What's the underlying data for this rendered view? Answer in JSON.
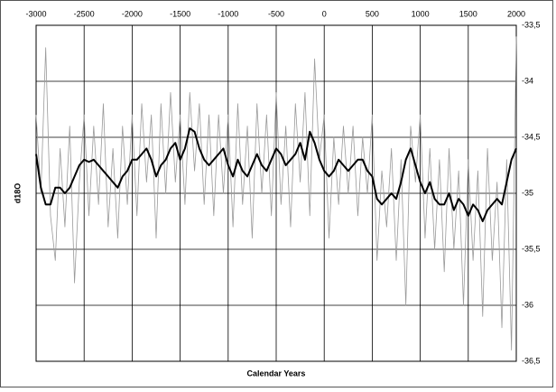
{
  "chart_data": {
    "type": "line",
    "xlabel": "Calendar Years",
    "ylabel": "d18O",
    "x": [
      -3000,
      -2950,
      -2900,
      -2850,
      -2800,
      -2750,
      -2700,
      -2650,
      -2600,
      -2550,
      -2500,
      -2450,
      -2400,
      -2350,
      -2300,
      -2250,
      -2200,
      -2150,
      -2100,
      -2050,
      -2000,
      -1950,
      -1900,
      -1850,
      -1800,
      -1750,
      -1700,
      -1650,
      -1600,
      -1550,
      -1500,
      -1450,
      -1400,
      -1350,
      -1300,
      -1250,
      -1200,
      -1150,
      -1100,
      -1050,
      -1000,
      -950,
      -900,
      -850,
      -800,
      -750,
      -700,
      -650,
      -600,
      -550,
      -500,
      -450,
      -400,
      -350,
      -300,
      -250,
      -200,
      -150,
      -100,
      -50,
      0,
      50,
      100,
      150,
      200,
      250,
      300,
      350,
      400,
      450,
      500,
      550,
      600,
      650,
      700,
      750,
      800,
      850,
      900,
      950,
      1000,
      1050,
      1100,
      1150,
      1200,
      1250,
      1300,
      1350,
      1400,
      1450,
      1500,
      1550,
      1600,
      1650,
      1700,
      1750,
      1800,
      1850,
      1900,
      1950,
      2000
    ],
    "series": [
      {
        "color": "#9a9a9a",
        "width": 0.8,
        "values": [
          -34.3,
          -35.0,
          -33.7,
          -35.2,
          -35.6,
          -34.6,
          -35.3,
          -34.4,
          -35.8,
          -34.9,
          -34.3,
          -35.2,
          -34.4,
          -35.1,
          -34.2,
          -35.3,
          -34.6,
          -35.4,
          -34.4,
          -35.1,
          -34.3,
          -35.2,
          -34.2,
          -34.9,
          -34.3,
          -35.4,
          -34.2,
          -35.0,
          -34.1,
          -34.9,
          -34.3,
          -35.1,
          -34.1,
          -34.8,
          -34.2,
          -35.1,
          -34.3,
          -35.2,
          -34.3,
          -35.0,
          -34.3,
          -35.3,
          -34.2,
          -35.1,
          -34.4,
          -35.4,
          -34.2,
          -35.0,
          -34.3,
          -35.2,
          -34.1,
          -35.1,
          -34.4,
          -35.3,
          -34.2,
          -34.9,
          -34.1,
          -35.2,
          -33.8,
          -34.7,
          -34.3,
          -35.4,
          -34.5,
          -35.1,
          -34.4,
          -35.0,
          -34.4,
          -35.2,
          -34.5,
          -35.0,
          -34.3,
          -35.6,
          -34.8,
          -35.3,
          -34.6,
          -35.6,
          -34.7,
          -36.0,
          -34.4,
          -34.9,
          -34.3,
          -35.4,
          -34.6,
          -35.5,
          -34.7,
          -35.7,
          -34.6,
          -35.5,
          -34.8,
          -36.0,
          -34.7,
          -35.6,
          -34.8,
          -36.1,
          -34.6,
          -35.6,
          -34.9,
          -36.2,
          -34.7,
          -36.4,
          -33.6
        ]
      },
      {
        "color": "#000000",
        "width": 2,
        "values": [
          -34.65,
          -34.95,
          -35.1,
          -35.1,
          -34.95,
          -34.95,
          -35.0,
          -34.95,
          -34.85,
          -34.75,
          -34.7,
          -34.72,
          -34.7,
          -34.75,
          -34.8,
          -34.85,
          -34.9,
          -34.95,
          -34.85,
          -34.8,
          -34.7,
          -34.7,
          -34.65,
          -34.6,
          -34.7,
          -34.85,
          -34.75,
          -34.7,
          -34.6,
          -34.55,
          -34.7,
          -34.6,
          -34.42,
          -34.45,
          -34.6,
          -34.7,
          -34.75,
          -34.7,
          -34.65,
          -34.6,
          -34.75,
          -34.85,
          -34.7,
          -34.8,
          -34.85,
          -34.75,
          -34.65,
          -34.75,
          -34.8,
          -34.7,
          -34.6,
          -34.65,
          -34.75,
          -34.7,
          -34.65,
          -34.55,
          -34.7,
          -34.45,
          -34.55,
          -34.7,
          -34.8,
          -34.85,
          -34.8,
          -34.7,
          -34.75,
          -34.8,
          -34.75,
          -34.7,
          -34.7,
          -34.8,
          -34.85,
          -35.05,
          -35.1,
          -35.05,
          -35.0,
          -35.05,
          -34.9,
          -34.7,
          -34.6,
          -34.75,
          -34.9,
          -35.0,
          -34.9,
          -35.05,
          -35.1,
          -35.1,
          -35.0,
          -35.15,
          -35.05,
          -35.1,
          -35.2,
          -35.1,
          -35.15,
          -35.25,
          -35.15,
          -35.1,
          -35.05,
          -35.1,
          -34.9,
          -34.7,
          -34.6
        ]
      }
    ],
    "xlim": [
      -3000,
      2000
    ],
    "xticks": [
      -3000,
      -2500,
      -2000,
      -1500,
      -1000,
      -500,
      0,
      500,
      1000,
      1500,
      2000
    ],
    "ylim": [
      -36.5,
      -33.5
    ],
    "yticks": [
      {
        "value": -33.5,
        "label": "-33,5"
      },
      -34,
      {
        "value": -34.5,
        "label": "-34,5"
      },
      -35,
      {
        "value": -35.5,
        "label": "-35,5"
      },
      -36,
      {
        "value": -36.5,
        "label": "-36,5"
      }
    ],
    "grid": true
  }
}
